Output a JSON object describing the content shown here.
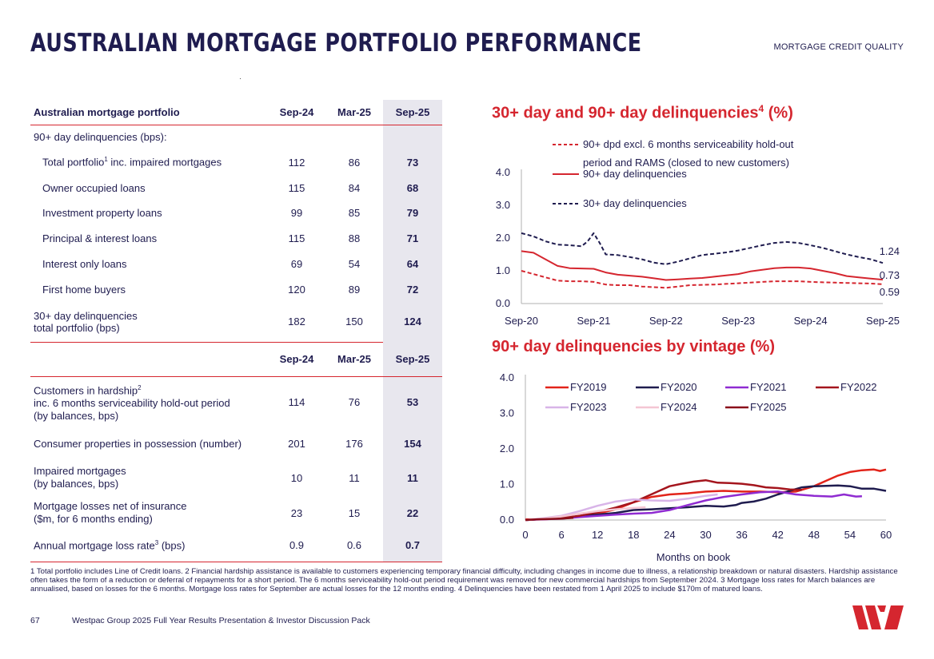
{
  "page": {
    "title": "AUSTRALIAN MORTGAGE PORTFOLIO PERFORMANCE",
    "section": "MORTGAGE CREDIT QUALITY",
    "page_number": "67",
    "footer": "Westpac Group 2025 Full Year Results Presentation & Investor Discussion Pack",
    "logo_text": "W",
    "footnote": "1 Total portfolio includes Line of Credit loans. 2 Financial hardship assistance is available to customers experiencing temporary financial difficulty, including changes in income due to illness, a relationship breakdown or natural disasters. Hardship assistance often takes the form of a reduction or deferral of repayments for a short period. The 6 months serviceability hold-out period requirement was removed for new commercial hardships from September 2024. 3 Mortgage loss rates for March balances are annualised, based on losses for the 6 months. Mortgage loss rates for September are actual losses for the 12 months ending. 4 Delinquencies have been restated from 1 April 2025 to include $170m of matured loans."
  },
  "colors": {
    "navy": "#1f1c4f",
    "red": "#d5262f",
    "highlight": "#e8e7ee"
  },
  "table1": {
    "header": {
      "label": "Australian mortgage portfolio",
      "c1": "Sep-24",
      "c2": "Mar-25",
      "c3": "Sep-25"
    },
    "section_label": "90+ day delinquencies (bps):",
    "rows": [
      {
        "label": "Total portfolio",
        "sup": "1",
        "label_suffix": " inc. impaired mortgages",
        "c1": "112",
        "c2": "86",
        "c3": "73"
      },
      {
        "label": "Owner occupied loans",
        "c1": "115",
        "c2": "84",
        "c3": "68"
      },
      {
        "label": "Investment property loans",
        "c1": "99",
        "c2": "85",
        "c3": "79"
      },
      {
        "label": "Principal & interest loans",
        "c1": "115",
        "c2": "88",
        "c3": "71"
      },
      {
        "label": "Interest only loans",
        "c1": "69",
        "c2": "54",
        "c3": "64"
      },
      {
        "label": "First home buyers",
        "c1": "120",
        "c2": "89",
        "c3": "72"
      }
    ],
    "last_row": {
      "line1": "30+ day delinquencies",
      "line2": "total portfolio (bps)",
      "c1": "182",
      "c2": "150",
      "c3": "124"
    }
  },
  "table2": {
    "header": {
      "c1": "Sep-24",
      "c2": "Mar-25",
      "c3": "Sep-25"
    },
    "rows": [
      {
        "line1": "Customers in hardship",
        "sup": "2",
        "line2": "inc. 6 months serviceability hold-out period",
        "line3": "(by balances, bps)",
        "c1": "114",
        "c2": "76",
        "c3": "53"
      },
      {
        "line1": "Consumer properties in possession (number)",
        "c1": "201",
        "c2": "176",
        "c3": "154"
      },
      {
        "line1": "Impaired mortgages",
        "line2": "(by balances, bps)",
        "c1": "10",
        "c2": "11",
        "c3": "11"
      },
      {
        "line1": "Mortgage losses net of insurance",
        "line2": "($m, for 6 months ending)",
        "c1": "23",
        "c2": "15",
        "c3": "22"
      },
      {
        "line1": "Annual mortgage loss rate",
        "sup": "3",
        "line2": " (bps)",
        "c1": "0.9",
        "c2": "0.6",
        "c3": "0.7"
      }
    ]
  },
  "chart_data": [
    {
      "type": "line",
      "title": "30+ day and 90+ day delinquencies",
      "title_sup": "4",
      "title_suffix": " (%)",
      "ylim": [
        0,
        4
      ],
      "yticks": [
        "0.0",
        "1.0",
        "2.0",
        "3.0",
        "4.0"
      ],
      "xticks": [
        "Sep-20",
        "Sep-21",
        "Sep-22",
        "Sep-23",
        "Sep-24",
        "Sep-25"
      ],
      "xlim": [
        0,
        60
      ],
      "legend": [
        {
          "label_line1": "90+ dpd excl. 6 months serviceability hold-out",
          "label_line2": "period and RAMS (closed to new customers)",
          "color": "#d5262f",
          "style": "dashed"
        },
        {
          "label_line1": "90+ day delinquencies",
          "color": "#d5262f",
          "style": "solid"
        },
        {
          "label_line1": "30+ day delinquencies",
          "color": "#1f1c4f",
          "style": "dashed"
        }
      ],
      "end_labels": [
        "1.24",
        "0.73",
        "0.59"
      ],
      "series": [
        {
          "name": "90+ dpd excl. 6 months serviceability hold-out period and RAMS",
          "color": "#d5262f",
          "dash": true,
          "x": [
            0,
            2,
            4,
            6,
            8,
            10,
            12,
            14,
            16,
            18,
            20,
            22,
            24,
            26,
            28,
            30,
            32,
            34,
            36,
            38,
            40,
            42,
            44,
            46,
            48,
            50,
            52,
            54,
            56,
            58,
            60
          ],
          "y": [
            1.0,
            0.9,
            0.8,
            0.7,
            0.68,
            0.68,
            0.66,
            0.58,
            0.56,
            0.56,
            0.52,
            0.5,
            0.48,
            0.52,
            0.56,
            0.57,
            0.58,
            0.6,
            0.62,
            0.64,
            0.66,
            0.68,
            0.68,
            0.68,
            0.66,
            0.65,
            0.64,
            0.63,
            0.62,
            0.61,
            0.59
          ]
        },
        {
          "name": "90+ day delinquencies",
          "color": "#d5262f",
          "dash": false,
          "x": [
            0,
            2,
            4,
            6,
            8,
            10,
            12,
            14,
            16,
            18,
            20,
            22,
            24,
            26,
            28,
            30,
            32,
            34,
            36,
            38,
            40,
            42,
            44,
            46,
            48,
            50,
            52,
            54,
            56,
            58,
            60
          ],
          "y": [
            1.6,
            1.55,
            1.35,
            1.15,
            1.08,
            1.07,
            1.06,
            0.95,
            0.88,
            0.85,
            0.82,
            0.77,
            0.72,
            0.74,
            0.76,
            0.78,
            0.82,
            0.86,
            0.9,
            0.98,
            1.03,
            1.08,
            1.1,
            1.1,
            1.07,
            1.0,
            0.93,
            0.84,
            0.8,
            0.76,
            0.73
          ]
        },
        {
          "name": "30+ day delinquencies",
          "color": "#1f1c4f",
          "dash": true,
          "x": [
            0,
            2,
            4,
            6,
            8,
            10,
            11,
            12,
            13,
            14,
            16,
            18,
            20,
            22,
            24,
            26,
            28,
            30,
            32,
            34,
            36,
            38,
            40,
            42,
            44,
            46,
            48,
            50,
            52,
            54,
            56,
            58,
            60
          ],
          "y": [
            2.15,
            2.05,
            1.9,
            1.8,
            1.78,
            1.75,
            1.9,
            2.15,
            1.85,
            1.5,
            1.48,
            1.42,
            1.35,
            1.25,
            1.2,
            1.28,
            1.38,
            1.48,
            1.52,
            1.56,
            1.62,
            1.7,
            1.78,
            1.85,
            1.88,
            1.85,
            1.78,
            1.7,
            1.6,
            1.5,
            1.42,
            1.35,
            1.24
          ]
        }
      ]
    },
    {
      "type": "line",
      "title": "90+ day delinquencies by vintage (%)",
      "xlabel": "Months on book",
      "ylim": [
        0,
        4
      ],
      "xlim": [
        0,
        60
      ],
      "yticks": [
        "0.0",
        "1.0",
        "2.0",
        "3.0",
        "4.0"
      ],
      "xticks": [
        "0",
        "6",
        "12",
        "18",
        "24",
        "30",
        "36",
        "42",
        "48",
        "54",
        "60"
      ],
      "series": [
        {
          "name": "FY2019",
          "color": "#e2241a",
          "x": [
            0,
            3,
            6,
            9,
            12,
            15,
            18,
            21,
            24,
            27,
            30,
            33,
            36,
            39,
            42,
            45,
            48,
            50,
            52,
            54,
            56,
            58,
            59,
            60
          ],
          "y": [
            0.02,
            0.02,
            0.05,
            0.1,
            0.18,
            0.3,
            0.5,
            0.65,
            0.72,
            0.75,
            0.8,
            0.82,
            0.8,
            0.8,
            0.78,
            0.8,
            0.95,
            1.1,
            1.25,
            1.35,
            1.4,
            1.42,
            1.38,
            1.42
          ]
        },
        {
          "name": "FY2020",
          "color": "#1f1c4f",
          "x": [
            0,
            3,
            6,
            9,
            12,
            15,
            18,
            21,
            24,
            27,
            30,
            33,
            35,
            36,
            38,
            40,
            42,
            44,
            46,
            48,
            50,
            52,
            54,
            56,
            58,
            60
          ],
          "y": [
            0.0,
            0.03,
            0.06,
            0.1,
            0.15,
            0.2,
            0.28,
            0.3,
            0.33,
            0.36,
            0.4,
            0.38,
            0.42,
            0.48,
            0.52,
            0.6,
            0.72,
            0.82,
            0.92,
            0.95,
            0.96,
            0.97,
            0.95,
            0.88,
            0.88,
            0.82
          ]
        },
        {
          "name": "FY2021",
          "color": "#8f2bd1",
          "x": [
            0,
            3,
            6,
            9,
            12,
            15,
            18,
            21,
            24,
            27,
            30,
            33,
            36,
            39,
            42,
            45,
            48,
            51,
            53,
            55,
            56
          ],
          "y": [
            0.0,
            0.02,
            0.04,
            0.08,
            0.12,
            0.15,
            0.18,
            0.2,
            0.28,
            0.42,
            0.55,
            0.65,
            0.72,
            0.78,
            0.8,
            0.72,
            0.68,
            0.66,
            0.72,
            0.66,
            0.67
          ]
        },
        {
          "name": "FY2022",
          "color": "#a4151d",
          "x": [
            0,
            3,
            6,
            9,
            12,
            15,
            18,
            20,
            22,
            24,
            26,
            28,
            30,
            32,
            34,
            36,
            38,
            40,
            42,
            44,
            46
          ],
          "y": [
            0.0,
            0.03,
            0.06,
            0.12,
            0.22,
            0.35,
            0.5,
            0.65,
            0.8,
            0.95,
            1.02,
            1.08,
            1.12,
            1.05,
            1.04,
            1.02,
            0.98,
            0.92,
            0.9,
            0.86,
            0.85
          ]
        },
        {
          "name": "FY2023",
          "color": "#d8b4e8",
          "x": [
            0,
            3,
            6,
            9,
            12,
            15,
            18,
            21,
            24,
            27,
            30,
            32
          ],
          "y": [
            0.0,
            0.05,
            0.12,
            0.25,
            0.4,
            0.52,
            0.58,
            0.55,
            0.54,
            0.6,
            0.68,
            0.72
          ]
        },
        {
          "name": "FY2024",
          "color": "#f4c6d3",
          "x": [
            0,
            3,
            6,
            9,
            12,
            15,
            18,
            20
          ],
          "y": [
            0.0,
            0.04,
            0.1,
            0.18,
            0.25,
            0.3,
            0.34,
            0.36
          ]
        },
        {
          "name": "FY2025",
          "color": "#8a0e1a",
          "x": [
            0,
            2,
            4,
            6,
            8
          ],
          "y": [
            0.0,
            0.02,
            0.03,
            0.04,
            0.06
          ]
        }
      ]
    }
  ]
}
